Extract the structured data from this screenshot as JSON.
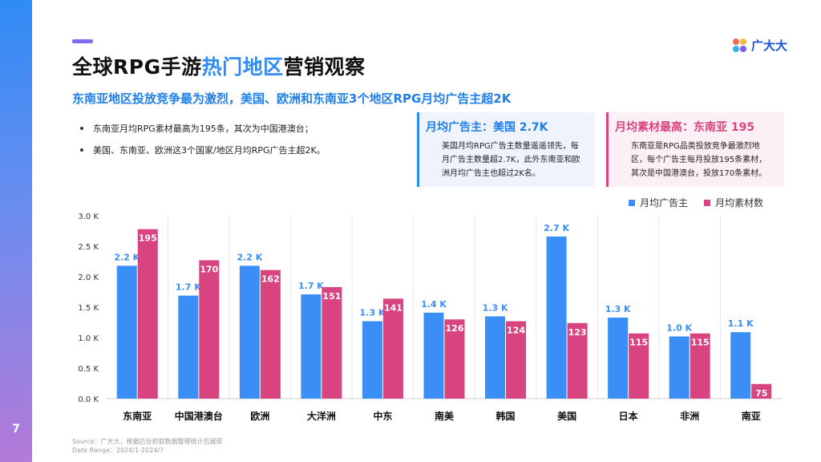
{
  "page_number": "7",
  "title_dash_color": "#7b6cf0",
  "title": {
    "part1": "全球RPG手游",
    "highlight": "热门地区",
    "part2": "营销观察"
  },
  "subtitle": "东南亚地区投放竞争最为激烈，美国、欧洲和东南亚3个地区RPG月均广告主超2K",
  "logo": {
    "text": "广大大",
    "icon": "clover-logo-icon"
  },
  "bullets": [
    "东南亚月均RPG素材最高为195条，其次为中国港澳台；",
    "美国、东南亚、欧洲这3个国家/地区月均RPG广告主超2K。"
  ],
  "cards": [
    {
      "title": "月均广告主：美国 2.7K",
      "body": "美国月均RPG广告主数量遥遥领先，每月广告主数量超2.7K，此外东南亚和欧洲月均广告主也超过2K名。"
    },
    {
      "title": "月均素材最高：东南亚 195",
      "body": "东南亚是RPG品类投放竞争最激烈地区，每个广告主每月投放195条素材，其次是中国港澳台，投放170条素材。"
    }
  ],
  "source": {
    "line1": "Source：广大大，根据后台抓取数据整理统计后展现",
    "line2": "Date Range：2024/1-2024/7"
  },
  "colors": {
    "advertisers": "#3a8ef6",
    "materials": "#d8447f",
    "accent": "#1e7fe8"
  },
  "chart_data": {
    "type": "bar",
    "categories": [
      "东南亚",
      "中国港澳台",
      "欧洲",
      "大洋洲",
      "中东",
      "南美",
      "韩国",
      "美国",
      "日本",
      "非洲",
      "南亚"
    ],
    "series": [
      {
        "name": "月均广告主",
        "values": [
          2.2,
          1.7,
          2.2,
          1.7,
          1.3,
          1.4,
          1.3,
          2.7,
          1.3,
          1.0,
          1.1
        ],
        "plotted": [
          2.18,
          1.69,
          2.18,
          1.71,
          1.27,
          1.41,
          1.35,
          2.66,
          1.33,
          1.02,
          1.09
        ],
        "labels": [
          "2.2 K",
          "1.7 K",
          "2.2 K",
          "1.7 K",
          "1.3 K",
          "1.4 K",
          "1.3 K",
          "2.7 K",
          "1.3 K",
          "1.0 K",
          "1.1 K"
        ]
      },
      {
        "name": "月均素材数",
        "values": [
          195,
          170,
          162,
          151,
          141,
          126,
          124,
          123,
          115,
          115,
          75
        ],
        "plotted": [
          2.78,
          2.27,
          2.11,
          1.83,
          1.64,
          1.3,
          1.27,
          1.24,
          1.07,
          1.07,
          0.24
        ],
        "labels": [
          "195",
          "170",
          "162",
          "151",
          "141",
          "126",
          "124",
          "123",
          "115",
          "115",
          "75"
        ]
      }
    ],
    "y_ticks": [
      "0.0 K",
      "0.5 K",
      "1.0 K",
      "1.5 K",
      "2.0 K",
      "2.5 K",
      "3.0 K"
    ],
    "ylim": [
      0,
      3.0
    ],
    "grid": "vertical separators",
    "legend": "top-right"
  }
}
